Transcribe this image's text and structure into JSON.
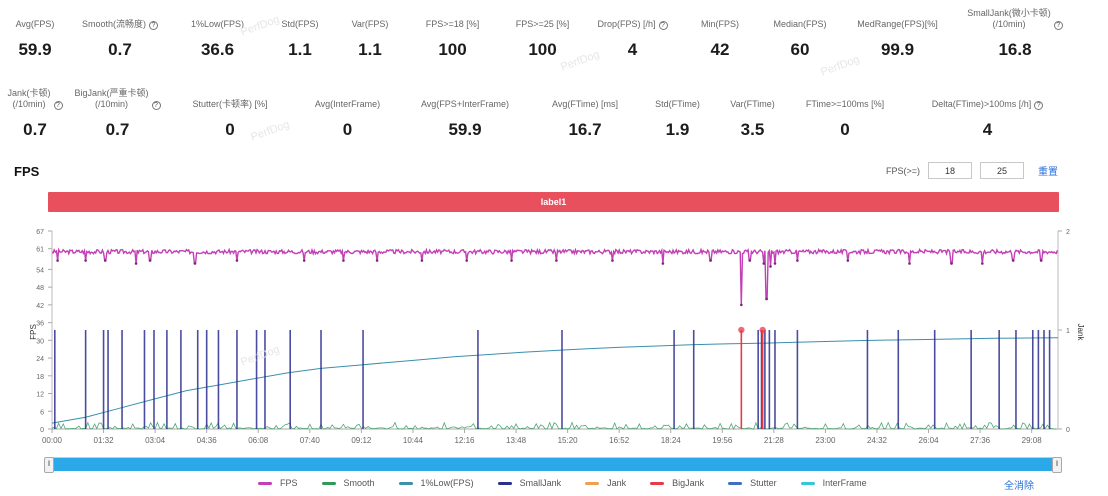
{
  "stats_row1": [
    {
      "label": "Avg(FPS)",
      "value": "59.9",
      "help": false
    },
    {
      "label": "Smooth(流畅度)",
      "value": "0.7",
      "help": true
    },
    {
      "label": "1%Low(FPS)",
      "value": "36.6",
      "help": false
    },
    {
      "label": "Std(FPS)",
      "value": "1.1",
      "help": false
    },
    {
      "label": "Var(FPS)",
      "value": "1.1",
      "help": false
    },
    {
      "label": "FPS>=18 [%]",
      "value": "100",
      "help": false
    },
    {
      "label": "FPS>=25 [%]",
      "value": "100",
      "help": false
    },
    {
      "label": "Drop(FPS) [/h]",
      "value": "4",
      "help": true
    },
    {
      "label": "Min(FPS)",
      "value": "42",
      "help": false
    },
    {
      "label": "Median(FPS)",
      "value": "60",
      "help": false
    },
    {
      "label": "MedRange(FPS)[%]",
      "value": "99.9",
      "help": false
    },
    {
      "label": "SmallJank(微小卡顿)\n(/10min)",
      "value": "16.8",
      "help": true
    }
  ],
  "stats_row2": [
    {
      "label": "Jank(卡顿)\n(/10min)",
      "value": "0.7",
      "help": true
    },
    {
      "label": "BigJank(严重卡顿)\n(/10min)",
      "value": "0.7",
      "help": true
    },
    {
      "label": "Stutter(卡顿率) [%]",
      "value": "0",
      "help": false
    },
    {
      "label": "Avg(InterFrame)",
      "value": "0",
      "help": false
    },
    {
      "label": "Avg(FPS+InterFrame)",
      "value": "59.9",
      "help": false
    },
    {
      "label": "Avg(FTime) [ms]",
      "value": "16.7",
      "help": false
    },
    {
      "label": "Std(FTime)",
      "value": "1.9",
      "help": false
    },
    {
      "label": "Var(FTime)",
      "value": "3.5",
      "help": false
    },
    {
      "label": "FTime>=100ms [%]",
      "value": "0",
      "help": false
    },
    {
      "label": "Delta(FTime)>100ms [/h]",
      "value": "4",
      "help": true
    }
  ],
  "watermark": "PerfDog",
  "section": {
    "title": "FPS",
    "threshold_label": "FPS(>=)",
    "threshold_values": [
      "18",
      "25"
    ],
    "reset_label": "重置",
    "label_bar": "label1",
    "select_all": "全消除"
  },
  "colors": {
    "fps": "#c23fb5",
    "smooth": "#2f9a5a",
    "low1": "#3a8fae",
    "small_jank": "#2b2f8f",
    "jank": "#f0a050",
    "big_jank": "#e83b4a",
    "stutter": "#3e6fc0",
    "interframe": "#34c7d6",
    "label_bar": "#e9505e",
    "slider": "#2aa8e8"
  },
  "chart_data": {
    "type": "line",
    "title": "FPS",
    "ylabel": "FPS",
    "y2label": "Jank",
    "ylim": [
      0,
      67
    ],
    "y2lim": [
      0,
      2
    ],
    "yticks": [
      "0",
      "6",
      "12",
      "18",
      "24",
      "30",
      "36",
      "42",
      "48",
      "54",
      "61",
      "67"
    ],
    "y2ticks": [
      "0",
      "1",
      "2"
    ],
    "xlim_seconds": [
      0,
      1795
    ],
    "xticks": [
      "00:00",
      "01:32",
      "03:04",
      "04:36",
      "06:08",
      "07:40",
      "09:12",
      "10:44",
      "12:16",
      "13:48",
      "15:20",
      "16:52",
      "18:24",
      "19:56",
      "21:28",
      "23:00",
      "24:32",
      "26:04",
      "27:36",
      "29:08"
    ],
    "grid": false,
    "legend_position": "bottom",
    "legend": [
      "FPS",
      "Smooth",
      "1%Low(FPS)",
      "SmallJank",
      "Jank",
      "BigJank",
      "Stutter",
      "InterFrame"
    ],
    "series": [
      {
        "name": "FPS",
        "axis": "left",
        "baseline": 60,
        "dips": [
          {
            "t": 10,
            "v": 57
          },
          {
            "t": 60,
            "v": 57
          },
          {
            "t": 95,
            "v": 57
          },
          {
            "t": 150,
            "v": 56
          },
          {
            "t": 175,
            "v": 57
          },
          {
            "t": 255,
            "v": 56
          },
          {
            "t": 330,
            "v": 57
          },
          {
            "t": 450,
            "v": 57
          },
          {
            "t": 520,
            "v": 57
          },
          {
            "t": 580,
            "v": 57
          },
          {
            "t": 660,
            "v": 57
          },
          {
            "t": 740,
            "v": 57
          },
          {
            "t": 820,
            "v": 57
          },
          {
            "t": 900,
            "v": 57
          },
          {
            "t": 1000,
            "v": 57
          },
          {
            "t": 1090,
            "v": 56
          },
          {
            "t": 1175,
            "v": 57
          },
          {
            "t": 1230,
            "v": 42
          },
          {
            "t": 1245,
            "v": 57
          },
          {
            "t": 1270,
            "v": 56
          },
          {
            "t": 1275,
            "v": 44
          },
          {
            "t": 1282,
            "v": 55
          },
          {
            "t": 1290,
            "v": 56
          },
          {
            "t": 1330,
            "v": 57
          },
          {
            "t": 1420,
            "v": 57
          },
          {
            "t": 1530,
            "v": 56
          },
          {
            "t": 1605,
            "v": 56
          },
          {
            "t": 1660,
            "v": 56
          },
          {
            "t": 1715,
            "v": 57
          },
          {
            "t": 1765,
            "v": 57
          }
        ]
      },
      {
        "name": "1%Low(FPS)",
        "axis": "left",
        "points": [
          [
            0,
            2
          ],
          [
            60,
            4
          ],
          [
            120,
            7
          ],
          [
            180,
            10
          ],
          [
            240,
            13
          ],
          [
            300,
            15
          ],
          [
            360,
            17
          ],
          [
            420,
            19
          ],
          [
            480,
            20.5
          ],
          [
            540,
            21.5
          ],
          [
            600,
            22.5
          ],
          [
            660,
            23.5
          ],
          [
            720,
            24.5
          ],
          [
            780,
            25.2
          ],
          [
            840,
            26
          ],
          [
            900,
            26.6
          ],
          [
            960,
            27.2
          ],
          [
            1020,
            27.7
          ],
          [
            1080,
            28.1
          ],
          [
            1140,
            28.5
          ],
          [
            1200,
            28.8
          ],
          [
            1260,
            29
          ],
          [
            1320,
            29.3
          ],
          [
            1380,
            29.6
          ],
          [
            1440,
            29.9
          ],
          [
            1500,
            30.1
          ],
          [
            1560,
            30.3
          ],
          [
            1620,
            30.5
          ],
          [
            1680,
            30.7
          ],
          [
            1740,
            30.8
          ],
          [
            1795,
            30.9
          ]
        ]
      },
      {
        "name": "SmallJank",
        "axis": "right",
        "value": 1,
        "times": [
          5,
          60,
          92,
          100,
          125,
          165,
          182,
          205,
          230,
          260,
          276,
          297,
          330,
          365,
          380,
          425,
          480,
          555,
          760,
          910,
          1110,
          1145,
          1260,
          1266,
          1272,
          1280,
          1290,
          1330,
          1455,
          1510,
          1575,
          1640,
          1690,
          1720,
          1750,
          1760,
          1770,
          1780
        ]
      },
      {
        "name": "BigJank",
        "axis": "right",
        "value": 1,
        "times": [
          1230,
          1268
        ]
      },
      {
        "name": "Smooth",
        "axis": "left",
        "note": "low-level noise near 0–2 throughout"
      }
    ]
  }
}
